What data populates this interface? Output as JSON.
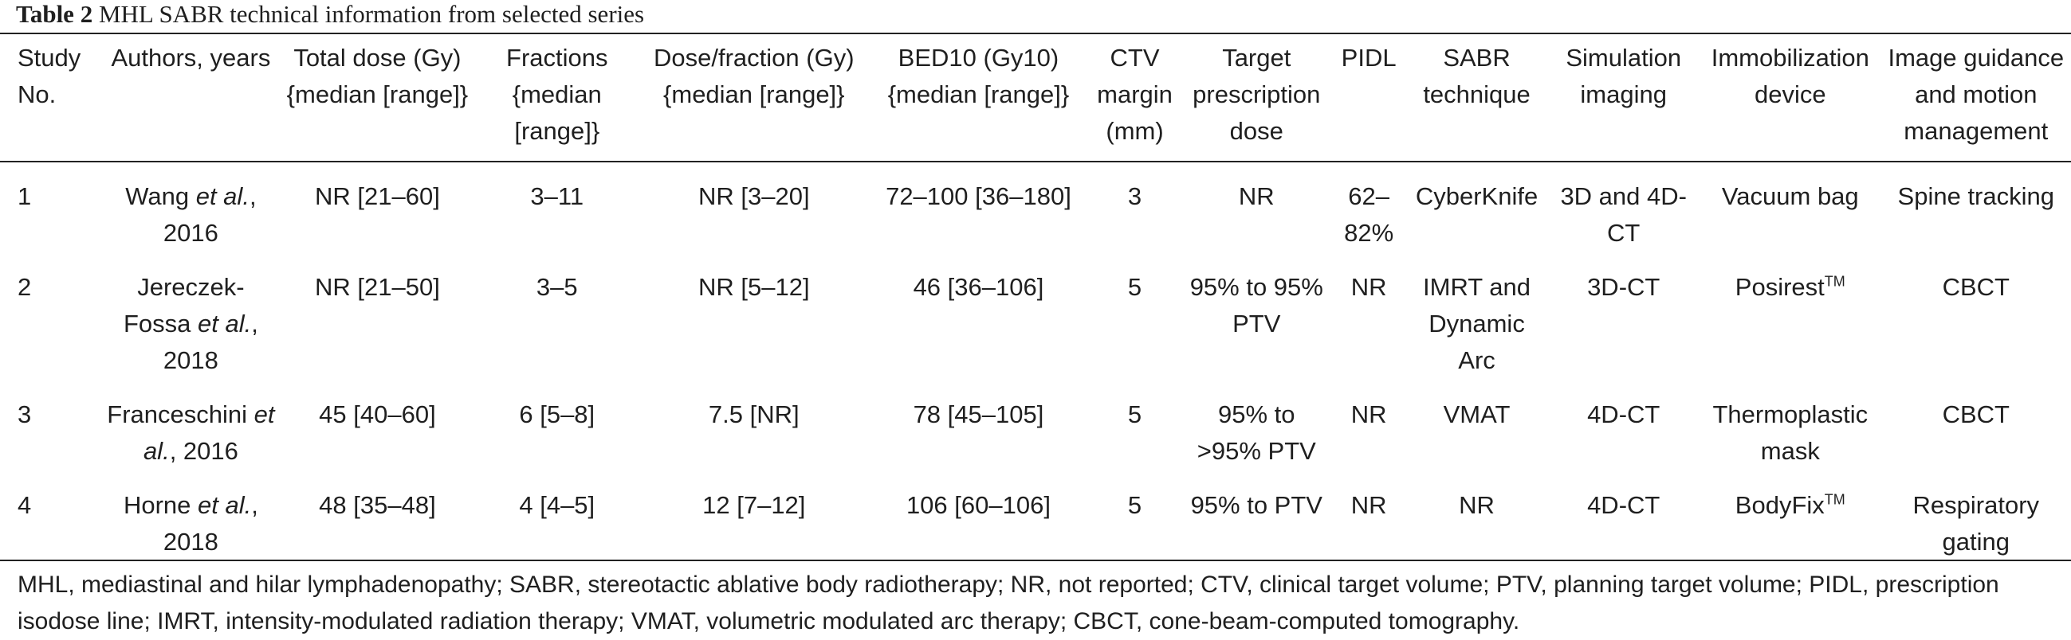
{
  "caption": {
    "label": "Table 2",
    "text": "MHL SABR technical information from selected series"
  },
  "columns": [
    "Study No.",
    "Authors, years",
    "Total dose (Gy) {median [range]}",
    "Fractions {median [range]}",
    "Dose/fraction (Gy) {median [range]}",
    "BED10 (Gy10) {median [range]}",
    "CTV margin (mm)",
    "Target prescription dose",
    "PIDL",
    "SABR technique",
    "Simulation imaging",
    "Immobilization device",
    "Image guidance and motion management"
  ],
  "rows": [
    {
      "study": "1",
      "author": "Wang",
      "etal": "et al.",
      "year": ", 2016",
      "total_dose": "NR [21–60]",
      "fractions": "3–11",
      "dose_fraction": "NR [3–20]",
      "bed10": "72–100 [36–180]",
      "ctv": "3",
      "target": "NR",
      "pidl": "62–82%",
      "technique": "CyberKnife",
      "imaging": "3D and 4D-CT",
      "device": "Vacuum bag",
      "device_tm": "",
      "guidance": "Spine tracking"
    },
    {
      "study": "2",
      "author": "Jereczek-Fossa",
      "etal": "et al.",
      "year": ", 2018",
      "total_dose": "NR [21–50]",
      "fractions": "3–5",
      "dose_fraction": "NR [5–12]",
      "bed10": "46 [36–106]",
      "ctv": "5",
      "target": "95% to 95% PTV",
      "pidl": "NR",
      "technique": "IMRT and Dynamic Arc",
      "imaging": "3D-CT",
      "device": "Posirest",
      "device_tm": "TM",
      "guidance": "CBCT"
    },
    {
      "study": "3",
      "author": "Franceschini",
      "etal": "et al.",
      "year": ", 2016",
      "total_dose": "45 [40–60]",
      "fractions": "6 [5–8]",
      "dose_fraction": "7.5 [NR]",
      "bed10": "78 [45–105]",
      "ctv": "5",
      "target": "95% to >95% PTV",
      "pidl": "NR",
      "technique": "VMAT",
      "imaging": "4D-CT",
      "device": "Thermoplastic mask",
      "device_tm": "",
      "guidance": "CBCT"
    },
    {
      "study": "4",
      "author": "Horne",
      "etal": "et al.",
      "year": ", 2018",
      "total_dose": "48 [35–48]",
      "fractions": "4 [4–5]",
      "dose_fraction": "12 [7–12]",
      "bed10": "106 [60–106]",
      "ctv": "5",
      "target": "95% to PTV",
      "pidl": "NR",
      "technique": "NR",
      "imaging": "4D-CT",
      "device": "BodyFix",
      "device_tm": "TM",
      "guidance": "Respiratory gating"
    }
  ],
  "footnote": "MHL, mediastinal and hilar lymphadenopathy; SABR, stereotactic ablative body radiotherapy; NR, not reported; CTV, clinical target volume; PTV, planning target volume; PIDL, prescription isodose line; IMRT, intensity-modulated radiation therapy; VMAT, volumetric modulated arc therapy; CBCT, cone-beam-computed tomography."
}
